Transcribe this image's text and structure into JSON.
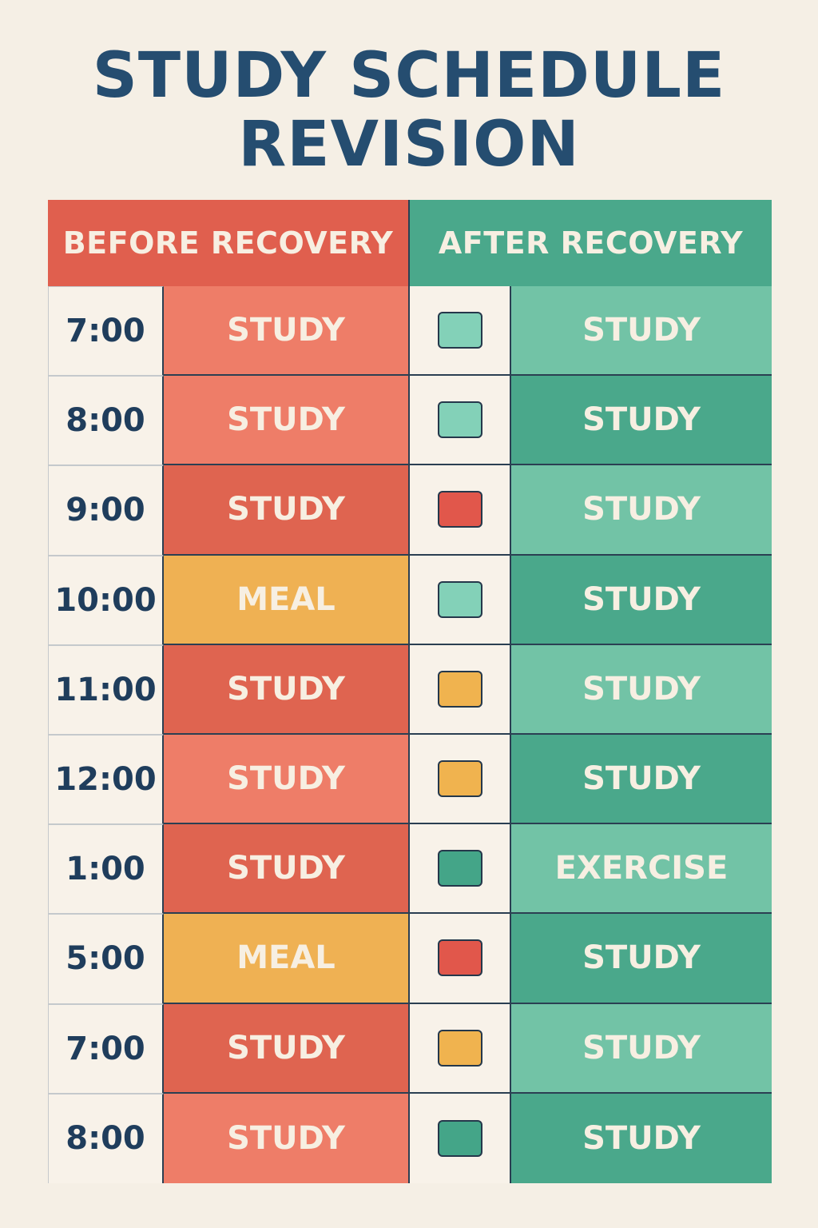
{
  "title": {
    "line1": "STUDY SCHEDULE",
    "line2": "REVISION"
  },
  "headers": {
    "before": "BEFORE RECOVERY",
    "after": "AFTER RECOVERY"
  },
  "colors": {
    "title": "#254d70",
    "background": "#f5efe5",
    "before_header": "#e05f4e",
    "after_header": "#4aa88b",
    "coral_light": "#ee7d68",
    "coral_dark": "#df6450",
    "meal_yellow": "#efb153",
    "teal_light": "#72c3a6",
    "teal_dark": "#4aa88b",
    "marker_mint": "#83d1b8",
    "marker_red": "#e1574b",
    "marker_yellow": "#f0b34f",
    "marker_teal": "#44a588"
  },
  "rows": [
    {
      "time": "7:00",
      "before": "STUDY",
      "before_color": "#ee7d68",
      "marker_color": "#83d1b8",
      "after": "STUDY",
      "after_color": "#72c3a6"
    },
    {
      "time": "8:00",
      "before": "STUDY",
      "before_color": "#ee7d68",
      "marker_color": "#83d1b8",
      "after": "STUDY",
      "after_color": "#4aa88b"
    },
    {
      "time": "9:00",
      "before": "STUDY",
      "before_color": "#df6450",
      "marker_color": "#e1574b",
      "after": "STUDY",
      "after_color": "#72c3a6"
    },
    {
      "time": "10:00",
      "before": "MEAL",
      "before_color": "#efb153",
      "marker_color": "#83d1b8",
      "after": "STUDY",
      "after_color": "#4aa88b"
    },
    {
      "time": "11:00",
      "before": "STUDY",
      "before_color": "#df6450",
      "marker_color": "#f0b34f",
      "after": "STUDY",
      "after_color": "#72c3a6"
    },
    {
      "time": "12:00",
      "before": "STUDY",
      "before_color": "#ee7d68",
      "marker_color": "#f0b34f",
      "after": "STUDY",
      "after_color": "#4aa88b"
    },
    {
      "time": "1:00",
      "before": "STUDY",
      "before_color": "#df6450",
      "marker_color": "#44a588",
      "after": "EXERCISE",
      "after_color": "#72c3a6"
    },
    {
      "time": "5:00",
      "before": "MEAL",
      "before_color": "#efb153",
      "marker_color": "#e1574b",
      "after": "STUDY",
      "after_color": "#4aa88b"
    },
    {
      "time": "7:00",
      "before": "STUDY",
      "before_color": "#df6450",
      "marker_color": "#f0b34f",
      "after": "STUDY",
      "after_color": "#72c3a6"
    },
    {
      "time": "8:00",
      "before": "STUDY",
      "before_color": "#ee7d68",
      "marker_color": "#44a588",
      "after": "STUDY",
      "after_color": "#4aa88b"
    }
  ]
}
